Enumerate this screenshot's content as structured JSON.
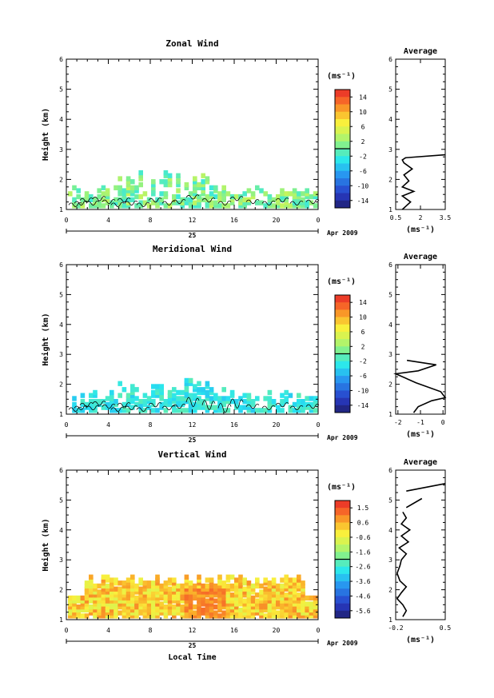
{
  "chart_data": [
    {
      "type": "heatmap",
      "title": "Zonal Wind",
      "ylabel": "Height (km)",
      "ylim": [
        1,
        6
      ],
      "xlim": [
        0,
        24
      ],
      "x_ticks": [
        "0",
        "4",
        "8",
        "12",
        "16",
        "20",
        "0"
      ],
      "y_ticks": [
        "1",
        "2",
        "3",
        "4",
        "5",
        "6"
      ],
      "date_axis": {
        "day": "25",
        "month_year": "Apr 2009"
      },
      "colorbar": {
        "unit": "(ms⁻¹)",
        "ticks": [
          "14",
          "10",
          "6",
          "2",
          "-2",
          "-6",
          "-10",
          "-14"
        ],
        "range": [
          -16,
          16
        ]
      },
      "profile": {
        "title": "Average",
        "xlabel": "(ms⁻¹)",
        "x_ticks": [
          "0.5",
          "2",
          "3.5"
        ],
        "y_ticks": [
          "1",
          "2",
          "3",
          "4",
          "5",
          "6"
        ],
        "xlim": [
          0.5,
          3.5
        ],
        "ylim": [
          1,
          6
        ],
        "x": [
          0.9,
          1.4,
          0.9,
          1.6,
          0.9,
          1.3,
          1.0,
          1.5,
          1.0,
          0.9,
          1.1,
          3.5
        ],
        "y": [
          1.0,
          1.25,
          1.45,
          1.6,
          1.75,
          1.95,
          2.15,
          2.35,
          2.55,
          2.65,
          2.72,
          2.82
        ]
      }
    },
    {
      "type": "heatmap",
      "title": "Meridional Wind",
      "ylabel": "Height (km)",
      "ylim": [
        1,
        6
      ],
      "xlim": [
        0,
        24
      ],
      "x_ticks": [
        "0",
        "4",
        "8",
        "12",
        "16",
        "20",
        "0"
      ],
      "y_ticks": [
        "1",
        "2",
        "3",
        "4",
        "5",
        "6"
      ],
      "date_axis": {
        "day": "25",
        "month_year": "Apr 2009"
      },
      "colorbar": {
        "unit": "(ms⁻¹)",
        "ticks": [
          "14",
          "10",
          "6",
          "2",
          "-2",
          "-6",
          "-10",
          "-14"
        ],
        "range": [
          -16,
          16
        ]
      },
      "profile": {
        "title": "Average",
        "xlabel": "(ms⁻¹)",
        "x_ticks": [
          "-2",
          "-1",
          "0"
        ],
        "y_ticks": [
          "1",
          "2",
          "3",
          "4",
          "5",
          "6"
        ],
        "xlim": [
          -2.1,
          0.1
        ],
        "ylim": [
          1,
          6
        ],
        "x": [
          -1.3,
          -1.1,
          -0.5,
          0.1,
          -0.1,
          -1.2,
          -2.1,
          -1.1,
          -0.3,
          -1.6
        ],
        "y": [
          1.05,
          1.25,
          1.45,
          1.55,
          1.75,
          2.05,
          2.35,
          2.45,
          2.65,
          2.8
        ]
      }
    },
    {
      "type": "heatmap",
      "title": "Vertical Wind",
      "ylabel": "Height (km)",
      "xlabel": "Local Time",
      "ylim": [
        1,
        6
      ],
      "xlim": [
        0,
        24
      ],
      "x_ticks": [
        "0",
        "4",
        "8",
        "12",
        "16",
        "20",
        "0"
      ],
      "y_ticks": [
        "1",
        "2",
        "3",
        "4",
        "5",
        "6"
      ],
      "date_axis": {
        "day": "25",
        "month_year": "Apr 2009"
      },
      "colorbar": {
        "unit": "(ms⁻¹)",
        "ticks": [
          "1.5",
          "0.6",
          "-0.6",
          "-1.6",
          "-2.6",
          "-3.6",
          "-4.6",
          "-5.6"
        ],
        "range": [
          -6,
          2
        ]
      },
      "profile": {
        "title": "Average",
        "xlabel": "(ms⁻¹)",
        "x_ticks": [
          "-0.2",
          "0.5"
        ],
        "y_ticks": [
          "1",
          "2",
          "3",
          "4",
          "5",
          "6"
        ],
        "xlim": [
          -0.2,
          0.5
        ],
        "ylim": [
          1,
          6
        ],
        "x": [
          -0.1,
          -0.05,
          -0.1,
          -0.18,
          -0.12,
          -0.05,
          -0.14,
          -0.18,
          -0.14,
          -0.12,
          -0.05,
          -0.15,
          -0.02,
          -0.12,
          0.0,
          -0.12,
          -0.05,
          -0.1
        ],
        "y": [
          1.1,
          1.3,
          1.5,
          1.7,
          1.9,
          2.1,
          2.3,
          2.55,
          2.8,
          3.0,
          3.2,
          3.4,
          3.6,
          3.8,
          4.0,
          4.2,
          4.4,
          4.6
        ],
        "x2": [
          -0.05,
          0.17
        ],
        "y2": [
          4.75,
          5.05
        ],
        "x3": [
          -0.05,
          0.5
        ],
        "y3": [
          5.3,
          5.55
        ]
      }
    }
  ]
}
